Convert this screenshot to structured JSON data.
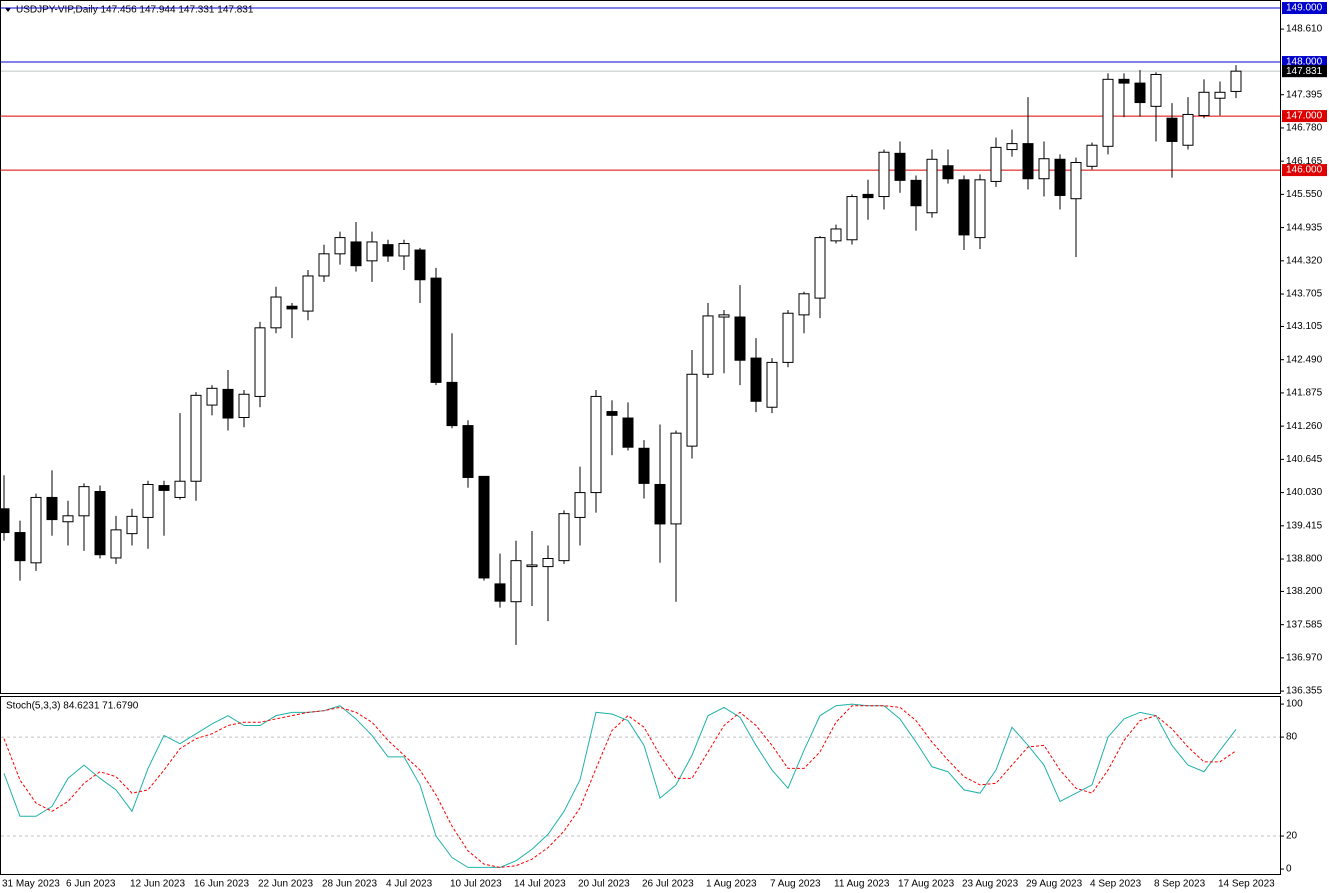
{
  "chart_data": [
    {
      "type": "candlestick",
      "title": "USDJPY-VIP,Daily  147.456 147.944 147.331 147.831",
      "categories": [
        "31 May 2023",
        null,
        null,
        null,
        "6 Jun 2023",
        null,
        null,
        null,
        "12 Jun 2023",
        null,
        null,
        null,
        "16 Jun 2023",
        null,
        null,
        null,
        "22 Jun 2023",
        null,
        null,
        null,
        "28 Jun 2023",
        null,
        null,
        null,
        "4 Jul 2023",
        null,
        null,
        null,
        "10 Jul 2023",
        null,
        null,
        null,
        "14 Jul 2023",
        null,
        null,
        null,
        "20 Jul 2023",
        null,
        null,
        null,
        "26 Jul 2023",
        null,
        null,
        null,
        "1 Aug 2023",
        null,
        null,
        null,
        "7 Aug 2023",
        null,
        null,
        null,
        "11 Aug 2023",
        null,
        null,
        null,
        "17 Aug 2023",
        null,
        null,
        null,
        "23 Aug 2023",
        null,
        null,
        null,
        "29 Aug 2023",
        null,
        null,
        null,
        "4 Sep 2023",
        null,
        null,
        null,
        "8 Sep 2023",
        null,
        null,
        null,
        "14 Sep 2023",
        null
      ],
      "open": [
        139.73,
        139.29,
        138.73,
        139.94,
        139.49,
        139.6,
        140.05,
        138.82,
        139.27,
        139.57,
        140.16,
        139.94,
        140.24,
        141.65,
        141.94,
        141.42,
        141.81,
        143.08,
        143.48,
        143.39,
        144.04,
        144.45,
        144.67,
        144.32,
        144.62,
        144.41,
        144.52,
        144.0,
        142.07,
        141.27,
        140.33,
        138.34,
        138.01,
        138.66,
        138.66,
        138.77,
        139.57,
        140.03,
        141.53,
        141.41,
        140.85,
        140.18,
        139.45,
        140.89,
        142.22,
        143.28,
        143.28,
        142.52,
        141.61,
        142.44,
        143.32,
        143.63,
        144.69,
        144.71,
        145.55,
        145.51,
        146.31,
        145.81,
        145.21,
        146.08,
        145.82,
        144.75,
        145.79,
        146.38,
        146.49,
        145.84,
        146.2,
        145.47,
        146.07,
        146.44,
        147.68,
        147.61,
        147.18,
        146.96,
        146.46,
        147.01,
        147.33,
        147.456
      ],
      "high": [
        140.35,
        139.51,
        140.01,
        140.44,
        139.88,
        140.2,
        140.16,
        139.6,
        139.73,
        140.25,
        140.25,
        141.5,
        141.89,
        142.02,
        142.3,
        141.93,
        143.19,
        143.84,
        143.54,
        144.15,
        144.62,
        144.86,
        145.04,
        144.86,
        144.71,
        144.71,
        144.56,
        144.19,
        142.98,
        141.37,
        140.33,
        138.9,
        139.14,
        139.32,
        139.05,
        139.7,
        140.51,
        141.93,
        141.74,
        141.7,
        141.0,
        141.29,
        141.18,
        142.67,
        143.54,
        143.41,
        143.87,
        142.89,
        142.52,
        143.41,
        143.75,
        144.78,
        144.99,
        145.55,
        145.82,
        146.38,
        146.53,
        145.9,
        146.38,
        146.38,
        145.9,
        145.92,
        146.6,
        146.75,
        147.35,
        146.53,
        146.29,
        146.23,
        146.51,
        147.79,
        147.79,
        147.85,
        147.81,
        147.24,
        147.35,
        147.68,
        147.64,
        147.944
      ],
      "low": [
        139.14,
        138.4,
        138.58,
        139.23,
        139.05,
        138.95,
        138.81,
        138.71,
        139.05,
        138.99,
        139.23,
        139.9,
        139.88,
        141.46,
        141.18,
        141.24,
        141.61,
        142.98,
        142.89,
        143.22,
        143.93,
        144.25,
        144.12,
        143.93,
        144.3,
        144.15,
        143.54,
        142.02,
        141.22,
        140.12,
        138.4,
        137.9,
        137.21,
        137.93,
        137.65,
        138.71,
        139.05,
        139.66,
        140.72,
        140.81,
        139.92,
        138.73,
        138.01,
        140.66,
        142.15,
        142.24,
        142.02,
        141.52,
        141.5,
        142.35,
        142.98,
        143.26,
        144.64,
        144.62,
        145.08,
        145.27,
        145.58,
        144.88,
        145.12,
        145.75,
        144.52,
        144.54,
        145.69,
        146.25,
        145.64,
        145.51,
        145.27,
        144.39,
        146.01,
        146.29,
        146.98,
        146.99,
        146.53,
        145.86,
        146.38,
        146.96,
        147.01,
        147.331
      ],
      "close": [
        139.29,
        138.77,
        139.94,
        139.53,
        139.6,
        140.14,
        138.88,
        139.34,
        139.59,
        140.18,
        140.07,
        140.24,
        141.83,
        141.96,
        141.41,
        141.85,
        143.08,
        143.65,
        143.43,
        144.04,
        144.45,
        144.75,
        144.23,
        144.67,
        144.41,
        144.64,
        143.97,
        142.07,
        141.27,
        140.31,
        138.45,
        138.02,
        138.77,
        138.69,
        138.81,
        139.64,
        140.03,
        141.81,
        141.46,
        140.87,
        140.2,
        139.45,
        141.13,
        142.22,
        143.3,
        143.32,
        142.48,
        141.72,
        142.44,
        143.35,
        143.71,
        144.75,
        144.91,
        145.51,
        145.49,
        146.33,
        145.81,
        145.34,
        146.2,
        145.84,
        144.8,
        145.82,
        146.42,
        146.49,
        145.84,
        146.21,
        145.53,
        146.14,
        146.46,
        147.68,
        147.61,
        147.25,
        147.77,
        146.53,
        147.03,
        147.44,
        147.44,
        147.831
      ],
      "up_color": "#ffffff",
      "down_color": "#000000",
      "ylim": [
        136.32,
        149.13
      ],
      "yticks": [
        {
          "value": 148.61,
          "label": "148.610"
        },
        {
          "value": 147.395,
          "label": "147.395"
        },
        {
          "value": 146.78,
          "label": "146.780"
        },
        {
          "value": 146.165,
          "label": "146.165"
        },
        {
          "value": 145.55,
          "label": "145.550"
        },
        {
          "value": 144.935,
          "label": "144.935"
        },
        {
          "value": 144.32,
          "label": "144.320"
        },
        {
          "value": 143.705,
          "label": "143.705"
        },
        {
          "value": 143.105,
          "label": "143.105"
        },
        {
          "value": 142.49,
          "label": "142.490"
        },
        {
          "value": 141.875,
          "label": "141.875"
        },
        {
          "value": 141.26,
          "label": "141.260"
        },
        {
          "value": 140.645,
          "label": "140.645"
        },
        {
          "value": 140.03,
          "label": "140.030"
        },
        {
          "value": 139.415,
          "label": "139.415"
        },
        {
          "value": 138.8,
          "label": "138.800"
        },
        {
          "value": 138.2,
          "label": "138.200"
        },
        {
          "value": 137.585,
          "label": "137.585"
        },
        {
          "value": 136.97,
          "label": "136.970"
        },
        {
          "value": 136.355,
          "label": "136.355"
        }
      ],
      "levels": [
        {
          "value": 149,
          "label": "149.000",
          "color": "#0000cc",
          "box": "#0000cc"
        },
        {
          "value": 148,
          "label": "148.000",
          "color": "#0000cc",
          "box": "#0000cc"
        },
        {
          "value": 147.831,
          "label": "147.831",
          "color": "#c0c8c0",
          "box": "#000000"
        },
        {
          "value": 147,
          "label": "147.000",
          "color": "#dd0000",
          "box": "#dd0000"
        },
        {
          "value": 146,
          "label": "146.000",
          "color": "#dd0000",
          "box": "#dd0000"
        }
      ]
    },
    {
      "type": "line",
      "title": "Stoch(5,3,3) 84.6231 71.6790",
      "series": [
        {
          "color": "#20b2aa",
          "dashed": false,
          "values": [
            58,
            32,
            32,
            38,
            55,
            63,
            55,
            48,
            35,
            61,
            81,
            76,
            82,
            88,
            93,
            87,
            87,
            93,
            95,
            95,
            96,
            99,
            91,
            81,
            68,
            68,
            51,
            20,
            7,
            1,
            1,
            1,
            5,
            12,
            21,
            35,
            54,
            95,
            94,
            90,
            75,
            43,
            51,
            69,
            93,
            98,
            92,
            75,
            60,
            49,
            72,
            93,
            99,
            100,
            99,
            99,
            91,
            77,
            62,
            59,
            48,
            46,
            60,
            86,
            75,
            63,
            41,
            46,
            51,
            80,
            91,
            95,
            93,
            75,
            63,
            59,
            72,
            84.6231
          ]
        },
        {
          "color": "#ff0000",
          "dashed": true,
          "values": [
            79,
            54,
            40,
            35,
            41,
            52,
            59,
            56,
            46,
            48,
            60,
            73,
            79,
            82,
            87,
            89,
            89,
            91,
            93,
            95,
            96,
            98,
            95,
            89,
            78,
            69,
            60,
            45,
            26,
            11,
            3,
            1,
            2,
            6,
            13,
            23,
            37,
            61,
            84,
            93,
            86,
            69,
            55,
            55,
            71,
            87,
            95,
            87,
            75,
            61,
            61,
            71,
            89,
            99,
            99,
            99,
            98,
            90,
            77,
            66,
            56,
            51,
            52,
            63,
            74,
            75,
            60,
            49,
            46,
            60,
            78,
            90,
            93,
            85,
            74,
            65,
            65,
            71.679
          ]
        }
      ],
      "ylim": [
        -3,
        104.3
      ],
      "yticks": [
        0,
        20,
        80,
        100
      ],
      "dotted_levels": [
        20,
        80
      ]
    }
  ]
}
